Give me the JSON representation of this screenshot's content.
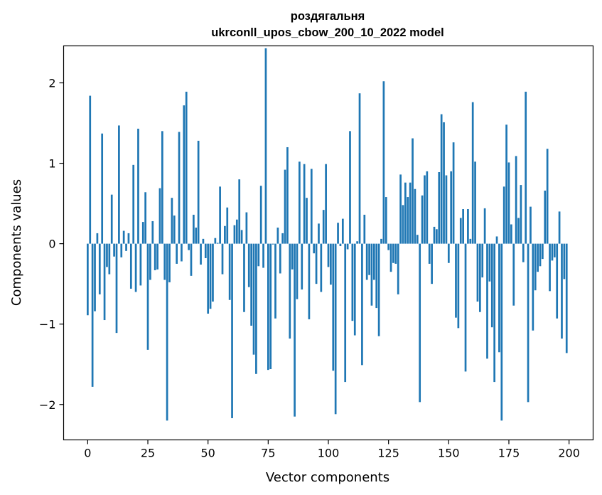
{
  "chart_data": {
    "type": "bar",
    "title_line1": "роздягальня",
    "title_line2": "ukrconll_upos_cbow_200_10_2022 model",
    "xlabel": "Vector components",
    "ylabel": "Components values",
    "xlim": [
      -10,
      210
    ],
    "ylim": [
      -2.44,
      2.46
    ],
    "xticks": [
      0,
      25,
      50,
      75,
      100,
      125,
      150,
      175,
      200
    ],
    "xtick_labels": [
      "0",
      "25",
      "50",
      "75",
      "100",
      "125",
      "150",
      "175",
      "200"
    ],
    "yticks": [
      -2,
      -1,
      0,
      1,
      2
    ],
    "ytick_labels": [
      "−2",
      "−1",
      "0",
      "1",
      "2"
    ],
    "bar_color": "#1f77b4",
    "values": [
      -0.89,
      1.84,
      -1.78,
      -0.84,
      0.13,
      -0.63,
      1.37,
      -0.95,
      -0.29,
      -0.38,
      0.61,
      -0.16,
      -1.11,
      1.47,
      -0.17,
      0.16,
      -0.09,
      0.13,
      -0.56,
      0.98,
      -0.6,
      1.43,
      -0.52,
      0.27,
      0.64,
      -1.32,
      -0.45,
      0.28,
      -0.33,
      -0.32,
      0.69,
      1.4,
      -0.45,
      -2.2,
      -0.48,
      0.57,
      0.35,
      -0.25,
      1.39,
      -0.22,
      1.72,
      1.89,
      -0.08,
      -0.4,
      0.36,
      0.2,
      1.28,
      -0.26,
      0.06,
      -0.18,
      -0.87,
      -0.81,
      -0.72,
      0.07,
      0.01,
      0.71,
      -0.38,
      0.22,
      0.45,
      -0.7,
      -2.17,
      0.23,
      0.3,
      0.8,
      0.17,
      -0.85,
      0.39,
      -0.54,
      -1.02,
      -1.38,
      -1.62,
      -0.28,
      0.72,
      -0.3,
      2.43,
      -1.57,
      -1.56,
      -0.01,
      -0.93,
      0.2,
      -0.37,
      0.13,
      0.92,
      1.2,
      -1.18,
      -0.32,
      -2.15,
      -0.69,
      1.02,
      -0.57,
      0.99,
      0.57,
      -0.94,
      0.93,
      -0.12,
      -0.5,
      0.25,
      -0.6,
      0.42,
      0.99,
      -0.29,
      -0.51,
      -1.58,
      -2.12,
      0.26,
      -0.03,
      0.31,
      -1.72,
      -0.07,
      1.4,
      -0.96,
      -1.14,
      0.03,
      1.87,
      -1.51,
      0.36,
      -0.45,
      -0.39,
      -0.77,
      -0.45,
      -0.8,
      -1.15,
      0.06,
      2.02,
      0.58,
      -0.08,
      -0.35,
      -0.24,
      -0.25,
      -0.63,
      0.86,
      0.48,
      0.76,
      0.58,
      0.76,
      1.31,
      0.68,
      0.11,
      -1.97,
      0.6,
      0.85,
      0.9,
      -0.25,
      -0.5,
      0.21,
      0.18,
      0.89,
      1.61,
      1.51,
      0.85,
      -0.24,
      0.9,
      1.26,
      -0.92,
      -1.05,
      0.32,
      0.43,
      -1.59,
      0.43,
      0.06,
      1.76,
      1.02,
      -0.72,
      -0.85,
      -0.42,
      0.44,
      -1.43,
      -0.47,
      -1.04,
      -1.72,
      0.09,
      -1.35,
      -2.2,
      0.71,
      1.48,
      1.01,
      0.24,
      -0.77,
      1.09,
      0.32,
      0.73,
      -0.23,
      1.89,
      -1.97,
      0.46,
      -1.08,
      -0.58,
      -0.35,
      -0.28,
      -0.19,
      0.66,
      1.18,
      -0.59,
      -0.21,
      -0.17,
      -0.93,
      0.4,
      -1.18,
      -0.44,
      -1.36
    ]
  }
}
